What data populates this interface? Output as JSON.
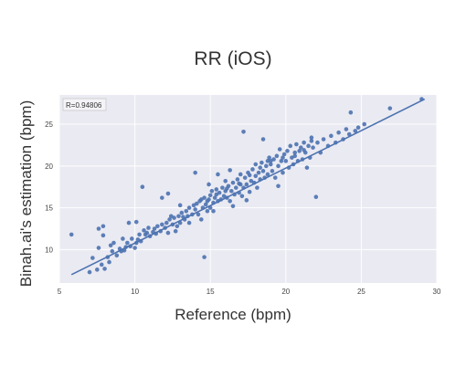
{
  "chart_data": {
    "type": "scatter",
    "title": "RR (iOS)",
    "xlabel": "Reference (bpm)",
    "ylabel": "Binah.ai's estimation (bpm)",
    "xlim": [
      5,
      30
    ],
    "ylim": [
      6,
      28.5
    ],
    "xticks": [
      "5",
      "10",
      "15",
      "20",
      "25",
      "30"
    ],
    "yticks": [
      "10",
      "15",
      "20",
      "25"
    ],
    "grid": true,
    "annotation": "R=0.94806",
    "colors": {
      "background": "#eaeaf2",
      "points": "#4c72b0",
      "line": "#4c72b0",
      "grid": "#ffffff"
    },
    "fit_line": {
      "x": [
        5.8,
        29.2
      ],
      "y": [
        7.0,
        28.0
      ]
    },
    "points": [
      [
        5.8,
        11.8
      ],
      [
        7.0,
        7.3
      ],
      [
        7.5,
        7.6
      ],
      [
        7.2,
        9.0
      ],
      [
        7.8,
        8.2
      ],
      [
        7.6,
        10.2
      ],
      [
        7.9,
        11.7
      ],
      [
        7.6,
        12.5
      ],
      [
        7.9,
        12.8
      ],
      [
        8.2,
        9.1
      ],
      [
        8.3,
        8.5
      ],
      [
        8.5,
        9.8
      ],
      [
        8.4,
        10.5
      ],
      [
        8.8,
        9.3
      ],
      [
        8.6,
        10.8
      ],
      [
        9.0,
        10.1
      ],
      [
        9.1,
        9.8
      ],
      [
        9.2,
        11.3
      ],
      [
        9.4,
        10.3
      ],
      [
        9.5,
        10.8
      ],
      [
        9.7,
        10.4
      ],
      [
        9.8,
        11.3
      ],
      [
        9.6,
        13.2
      ],
      [
        10.0,
        10.2
      ],
      [
        10.1,
        10.8
      ],
      [
        10.2,
        11.2
      ],
      [
        10.3,
        11.8
      ],
      [
        10.1,
        13.3
      ],
      [
        10.4,
        11.0
      ],
      [
        10.6,
        12.3
      ],
      [
        10.7,
        11.8
      ],
      [
        10.8,
        12.0
      ],
      [
        10.5,
        17.5
      ],
      [
        11.0,
        11.6
      ],
      [
        11.2,
        12.1
      ],
      [
        11.3,
        12.5
      ],
      [
        11.4,
        11.9
      ],
      [
        11.5,
        12.8
      ],
      [
        11.7,
        12.2
      ],
      [
        11.8,
        13.0
      ],
      [
        11.8,
        16.2
      ],
      [
        12.0,
        12.6
      ],
      [
        12.1,
        13.2
      ],
      [
        12.2,
        12.0
      ],
      [
        12.2,
        16.7
      ],
      [
        12.3,
        13.6
      ],
      [
        12.5,
        13.0
      ],
      [
        12.6,
        13.8
      ],
      [
        12.8,
        12.8
      ],
      [
        12.9,
        14.0
      ],
      [
        13.0,
        13.2
      ],
      [
        13.1,
        14.4
      ],
      [
        13.3,
        13.6
      ],
      [
        13.4,
        14.6
      ],
      [
        13.5,
        14.0
      ],
      [
        13.6,
        13.2
      ],
      [
        13.6,
        15.0
      ],
      [
        13.8,
        14.2
      ],
      [
        13.9,
        15.3
      ],
      [
        14.0,
        14.8
      ],
      [
        14.0,
        19.2
      ],
      [
        14.1,
        15.5
      ],
      [
        14.2,
        14.2
      ],
      [
        14.3,
        15.8
      ],
      [
        14.4,
        13.6
      ],
      [
        14.4,
        16.0
      ],
      [
        14.5,
        15.0
      ],
      [
        14.6,
        16.2
      ],
      [
        14.7,
        15.4
      ],
      [
        14.8,
        14.6
      ],
      [
        14.9,
        16.0
      ],
      [
        14.6,
        9.1
      ],
      [
        15.0,
        16.5
      ],
      [
        15.0,
        15.0
      ],
      [
        15.1,
        17.0
      ],
      [
        15.2,
        15.6
      ],
      [
        15.3,
        16.2
      ],
      [
        15.4,
        17.2
      ],
      [
        15.5,
        15.8
      ],
      [
        15.5,
        19.0
      ],
      [
        15.6,
        16.8
      ],
      [
        15.7,
        16.0
      ],
      [
        15.8,
        17.4
      ],
      [
        15.9,
        16.4
      ],
      [
        16.0,
        17.0
      ],
      [
        16.0,
        18.2
      ],
      [
        16.1,
        16.2
      ],
      [
        16.2,
        17.6
      ],
      [
        16.3,
        15.8
      ],
      [
        16.3,
        19.5
      ],
      [
        16.4,
        17.0
      ],
      [
        16.5,
        18.0
      ],
      [
        16.5,
        15.2
      ],
      [
        16.6,
        16.6
      ],
      [
        16.7,
        17.4
      ],
      [
        16.8,
        18.4
      ],
      [
        16.9,
        16.8
      ],
      [
        17.0,
        17.8
      ],
      [
        17.0,
        19.0
      ],
      [
        17.2,
        24.1
      ],
      [
        17.1,
        16.4
      ],
      [
        17.2,
        17.4
      ],
      [
        17.3,
        18.6
      ],
      [
        17.4,
        17.8
      ],
      [
        17.5,
        19.2
      ],
      [
        17.6,
        16.9
      ],
      [
        17.7,
        18.2
      ],
      [
        17.8,
        19.6
      ],
      [
        17.9,
        18.0
      ],
      [
        18.0,
        18.8
      ],
      [
        18.0,
        20.2
      ],
      [
        18.1,
        17.4
      ],
      [
        18.2,
        19.2
      ],
      [
        18.3,
        18.4
      ],
      [
        18.4,
        20.4
      ],
      [
        18.5,
        19.4
      ],
      [
        18.5,
        23.2
      ],
      [
        18.6,
        18.6
      ],
      [
        18.7,
        20.0
      ],
      [
        18.8,
        19.0
      ],
      [
        18.9,
        21.0
      ],
      [
        19.0,
        20.2
      ],
      [
        19.1,
        19.4
      ],
      [
        19.2,
        20.8
      ],
      [
        19.3,
        18.6
      ],
      [
        19.4,
        21.2
      ],
      [
        19.5,
        20.0
      ],
      [
        19.6,
        22.0
      ],
      [
        19.7,
        20.6
      ],
      [
        19.8,
        19.2
      ],
      [
        19.9,
        21.4
      ],
      [
        20.0,
        20.6
      ],
      [
        20.1,
        21.8
      ],
      [
        20.2,
        19.8
      ],
      [
        20.3,
        22.4
      ],
      [
        20.4,
        21.0
      ],
      [
        20.5,
        20.2
      ],
      [
        20.6,
        21.6
      ],
      [
        20.7,
        22.6
      ],
      [
        20.8,
        20.6
      ],
      [
        20.9,
        21.8
      ],
      [
        21.0,
        22.2
      ],
      [
        21.1,
        20.8
      ],
      [
        21.2,
        22.8
      ],
      [
        21.3,
        21.6
      ],
      [
        21.4,
        19.8
      ],
      [
        21.5,
        22.4
      ],
      [
        21.6,
        21.0
      ],
      [
        21.7,
        23.0
      ],
      [
        21.8,
        22.2
      ],
      [
        22.0,
        16.3
      ],
      [
        22.1,
        22.8
      ],
      [
        22.3,
        21.6
      ],
      [
        22.5,
        23.2
      ],
      [
        22.8,
        22.4
      ],
      [
        23.0,
        23.6
      ],
      [
        23.3,
        22.8
      ],
      [
        23.5,
        24.0
      ],
      [
        23.8,
        23.2
      ],
      [
        24.0,
        24.4
      ],
      [
        24.2,
        23.8
      ],
      [
        24.3,
        26.4
      ],
      [
        24.6,
        24.2
      ],
      [
        24.8,
        24.6
      ],
      [
        25.2,
        25.0
      ],
      [
        26.9,
        26.9
      ],
      [
        29.0,
        28.0
      ],
      [
        8.0,
        7.7
      ],
      [
        9.3,
        9.9
      ],
      [
        10.9,
        12.6
      ],
      [
        12.7,
        12.2
      ],
      [
        13.2,
        13.9
      ],
      [
        14.8,
        15.8
      ],
      [
        15.4,
        16.6
      ],
      [
        16.1,
        17.3
      ],
      [
        16.9,
        17.9
      ],
      [
        17.6,
        18.9
      ],
      [
        18.3,
        19.8
      ],
      [
        19.0,
        20.6
      ],
      [
        19.8,
        21.0
      ],
      [
        20.6,
        21.2
      ],
      [
        21.2,
        21.9
      ],
      [
        13.0,
        15.3
      ],
      [
        12.4,
        14.0
      ],
      [
        15.2,
        14.6
      ],
      [
        17.4,
        15.9
      ],
      [
        18.8,
        20.6
      ],
      [
        21.7,
        23.4
      ],
      [
        19.5,
        17.6
      ],
      [
        14.9,
        17.8
      ]
    ]
  }
}
